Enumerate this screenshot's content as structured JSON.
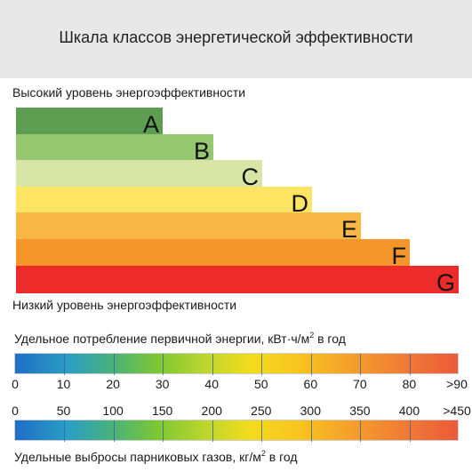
{
  "title": "Шкала классов энергетической эффективности",
  "top_label": "Высокий уровень энергоэффективности",
  "bottom_label": "Низкий уровень энергоэффективности",
  "classes": [
    {
      "letter": "A",
      "color": "#5e9e52"
    },
    {
      "letter": "B",
      "color": "#94c770"
    },
    {
      "letter": "C",
      "color": "#d9e5a6"
    },
    {
      "letter": "D",
      "color": "#fde463"
    },
    {
      "letter": "E",
      "color": "#f9b845"
    },
    {
      "letter": "F",
      "color": "#f4962a"
    },
    {
      "letter": "G",
      "color": "#ed2b2b"
    }
  ],
  "energy_scale": {
    "title_text": "Удельное потребление первичной энергии, кВт·ч/м",
    "title_sup": "2",
    "title_tail": " в год",
    "ticks": [
      "0",
      "10",
      "20",
      "30",
      "40",
      "50",
      "60",
      "70",
      "80",
      ">90"
    ]
  },
  "emission_scale": {
    "title_text": "Удельные выбросы парниковых газов, кг/м",
    "title_sup": "2",
    "title_tail": " в год",
    "ticks": [
      "0",
      "50",
      "100",
      "150",
      "200",
      "250",
      "300",
      "350",
      "400",
      ">450"
    ]
  }
}
